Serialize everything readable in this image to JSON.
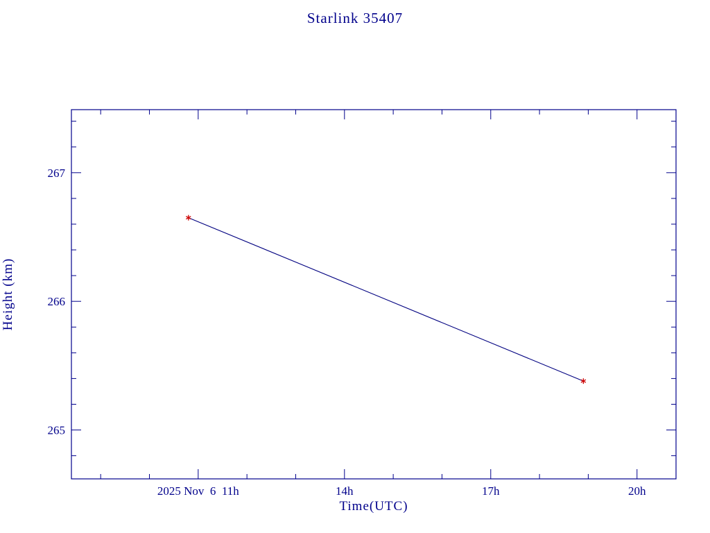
{
  "page": {
    "background": "#ffffff"
  },
  "chart_data": {
    "type": "line",
    "title": "Starlink 35407",
    "xlabel": "Time(UTC)",
    "ylabel": "Height (km)",
    "xlim": [
      8.4,
      20.8
    ],
    "ylim": [
      264.62,
      267.49
    ],
    "x_major_ticks": [
      {
        "value": 11,
        "label": "2025 Nov  6  11h"
      },
      {
        "value": 14,
        "label": "14h"
      },
      {
        "value": 17,
        "label": "17h"
      },
      {
        "value": 20,
        "label": "20h"
      }
    ],
    "x_minor_step": 1,
    "y_major_ticks": [
      {
        "value": 265,
        "label": "265"
      },
      {
        "value": 266,
        "label": "266"
      },
      {
        "value": 267,
        "label": "267"
      }
    ],
    "y_minor_step": 0.2,
    "series": [
      {
        "name": "height-vs-time",
        "points": [
          {
            "x": 10.8,
            "y": 266.65
          },
          {
            "x": 18.9,
            "y": 265.38
          }
        ],
        "line_color": "#000080",
        "marker": "asterisk",
        "marker_color": "#cc0000"
      }
    ],
    "axis_color": "#00008b",
    "text_color": "#00008b",
    "grid": false,
    "legend": false
  }
}
